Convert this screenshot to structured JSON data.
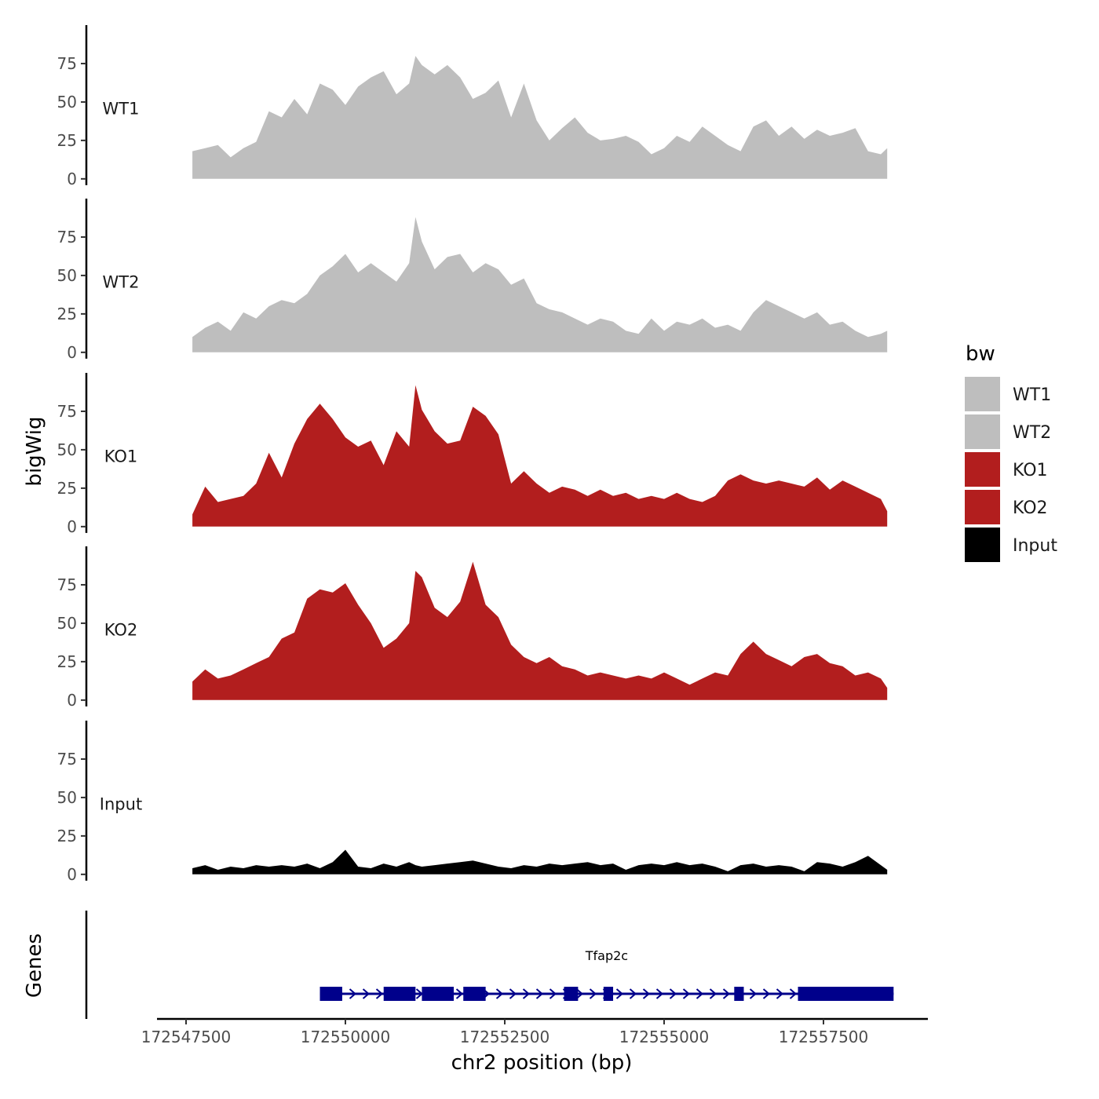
{
  "chart_data": {
    "type": "area",
    "title": "",
    "xlabel": "chr2 position (bp)",
    "ylabel": "bigWig",
    "gene_panel_label": "Genes",
    "xlim": [
      172547500,
      172559000
    ],
    "x_data_range": [
      172547600,
      172558500
    ],
    "ylim": [
      0,
      95
    ],
    "x_ticks": [
      172547500,
      172550000,
      172552500,
      172555000,
      172557500
    ],
    "x_tick_labels": [
      "172547500",
      "172550000",
      "172552500",
      "172555000",
      "172557500"
    ],
    "y_ticks": [
      0,
      25,
      50,
      75
    ],
    "y_tick_labels": [
      "0",
      "25",
      "50",
      "75"
    ],
    "legend": {
      "title": "bw",
      "position": "right",
      "entries": [
        {
          "label": "WT1",
          "color": "#bebebe"
        },
        {
          "label": "WT2",
          "color": "#bebebe"
        },
        {
          "label": "KO1",
          "color": "#b21e1e"
        },
        {
          "label": "KO2",
          "color": "#b21e1e"
        },
        {
          "label": "Input",
          "color": "#000000"
        }
      ]
    },
    "series": [
      {
        "name": "WT1",
        "color": "#bebebe",
        "x": [
          172547600,
          172547800,
          172548000,
          172548200,
          172548400,
          172548600,
          172548800,
          172549000,
          172549200,
          172549400,
          172549600,
          172549800,
          172550000,
          172550200,
          172550400,
          172550600,
          172550800,
          172551000,
          172551100,
          172551200,
          172551400,
          172551600,
          172551800,
          172552000,
          172552200,
          172552400,
          172552600,
          172552800,
          172553000,
          172553200,
          172553400,
          172553600,
          172553800,
          172554000,
          172554200,
          172554400,
          172554600,
          172554800,
          172555000,
          172555200,
          172555400,
          172555600,
          172555800,
          172556000,
          172556200,
          172556400,
          172556600,
          172556800,
          172557000,
          172557200,
          172557400,
          172557600,
          172557800,
          172558000,
          172558200,
          172558400,
          172558500
        ],
        "values": [
          18,
          20,
          22,
          14,
          20,
          24,
          44,
          40,
          52,
          42,
          62,
          58,
          48,
          60,
          66,
          70,
          55,
          62,
          80,
          74,
          68,
          74,
          66,
          52,
          56,
          64,
          40,
          62,
          38,
          25,
          33,
          40,
          30,
          25,
          26,
          28,
          24,
          16,
          20,
          28,
          24,
          34,
          28,
          22,
          18,
          34,
          38,
          28,
          34,
          26,
          32,
          28,
          30,
          33,
          18,
          16,
          20
        ]
      },
      {
        "name": "WT2",
        "color": "#bebebe",
        "x": [
          172547600,
          172547800,
          172548000,
          172548200,
          172548400,
          172548600,
          172548800,
          172549000,
          172549200,
          172549400,
          172549600,
          172549800,
          172550000,
          172550200,
          172550400,
          172550600,
          172550800,
          172551000,
          172551100,
          172551200,
          172551400,
          172551600,
          172551800,
          172552000,
          172552200,
          172552400,
          172552600,
          172552800,
          172553000,
          172553200,
          172553400,
          172553600,
          172553800,
          172554000,
          172554200,
          172554400,
          172554600,
          172554800,
          172555000,
          172555200,
          172555400,
          172555600,
          172555800,
          172556000,
          172556200,
          172556400,
          172556600,
          172556800,
          172557000,
          172557200,
          172557400,
          172557600,
          172557800,
          172558000,
          172558200,
          172558400,
          172558500
        ],
        "values": [
          10,
          16,
          20,
          14,
          26,
          22,
          30,
          34,
          32,
          38,
          50,
          56,
          64,
          52,
          58,
          52,
          46,
          58,
          88,
          72,
          54,
          62,
          64,
          52,
          58,
          54,
          44,
          48,
          32,
          28,
          26,
          22,
          18,
          22,
          20,
          14,
          12,
          22,
          14,
          20,
          18,
          22,
          16,
          18,
          14,
          26,
          34,
          30,
          26,
          22,
          26,
          18,
          20,
          14,
          10,
          12,
          14
        ]
      },
      {
        "name": "KO1",
        "color": "#b21e1e",
        "x": [
          172547600,
          172547800,
          172548000,
          172548200,
          172548400,
          172548600,
          172548800,
          172549000,
          172549200,
          172549400,
          172549600,
          172549800,
          172550000,
          172550200,
          172550400,
          172550600,
          172550800,
          172551000,
          172551100,
          172551200,
          172551400,
          172551600,
          172551800,
          172552000,
          172552200,
          172552400,
          172552600,
          172552800,
          172553000,
          172553200,
          172553400,
          172553600,
          172553800,
          172554000,
          172554200,
          172554400,
          172554600,
          172554800,
          172555000,
          172555200,
          172555400,
          172555600,
          172555800,
          172556000,
          172556200,
          172556400,
          172556600,
          172556800,
          172557000,
          172557200,
          172557400,
          172557600,
          172557800,
          172558000,
          172558200,
          172558400,
          172558500
        ],
        "values": [
          8,
          26,
          16,
          18,
          20,
          28,
          48,
          32,
          54,
          70,
          80,
          70,
          58,
          52,
          56,
          40,
          62,
          52,
          92,
          76,
          62,
          54,
          56,
          78,
          72,
          60,
          28,
          36,
          28,
          22,
          26,
          24,
          20,
          24,
          20,
          22,
          18,
          20,
          18,
          22,
          18,
          16,
          20,
          30,
          34,
          30,
          28,
          30,
          28,
          26,
          32,
          24,
          30,
          26,
          22,
          18,
          10
        ]
      },
      {
        "name": "KO2",
        "color": "#b21e1e",
        "x": [
          172547600,
          172547800,
          172548000,
          172548200,
          172548400,
          172548600,
          172548800,
          172549000,
          172549200,
          172549400,
          172549600,
          172549800,
          172550000,
          172550200,
          172550400,
          172550600,
          172550800,
          172551000,
          172551100,
          172551200,
          172551400,
          172551600,
          172551800,
          172552000,
          172552200,
          172552400,
          172552600,
          172552800,
          172553000,
          172553200,
          172553400,
          172553600,
          172553800,
          172554000,
          172554200,
          172554400,
          172554600,
          172554800,
          172555000,
          172555200,
          172555400,
          172555600,
          172555800,
          172556000,
          172556200,
          172556400,
          172556600,
          172556800,
          172557000,
          172557200,
          172557400,
          172557600,
          172557800,
          172558000,
          172558200,
          172558400,
          172558500
        ],
        "values": [
          12,
          20,
          14,
          16,
          20,
          24,
          28,
          40,
          44,
          66,
          72,
          70,
          76,
          62,
          50,
          34,
          40,
          50,
          84,
          80,
          60,
          54,
          64,
          90,
          62,
          54,
          36,
          28,
          24,
          28,
          22,
          20,
          16,
          18,
          16,
          14,
          16,
          14,
          18,
          14,
          10,
          14,
          18,
          16,
          30,
          38,
          30,
          26,
          22,
          28,
          30,
          24,
          22,
          16,
          18,
          14,
          8
        ]
      },
      {
        "name": "Input",
        "color": "#000000",
        "x": [
          172547600,
          172547800,
          172548000,
          172548200,
          172548400,
          172548600,
          172548800,
          172549000,
          172549200,
          172549400,
          172549600,
          172549800,
          172550000,
          172550200,
          172550400,
          172550600,
          172550800,
          172551000,
          172551100,
          172551200,
          172551400,
          172551600,
          172551800,
          172552000,
          172552200,
          172552400,
          172552600,
          172552800,
          172553000,
          172553200,
          172553400,
          172553600,
          172553800,
          172554000,
          172554200,
          172554400,
          172554600,
          172554800,
          172555000,
          172555200,
          172555400,
          172555600,
          172555800,
          172556000,
          172556200,
          172556400,
          172556600,
          172556800,
          172557000,
          172557200,
          172557400,
          172557600,
          172557800,
          172558000,
          172558200,
          172558400,
          172558500
        ],
        "values": [
          4,
          6,
          3,
          5,
          4,
          6,
          5,
          6,
          5,
          7,
          4,
          8,
          16,
          5,
          4,
          7,
          5,
          8,
          6,
          5,
          6,
          7,
          8,
          9,
          7,
          5,
          4,
          6,
          5,
          7,
          6,
          7,
          8,
          6,
          7,
          3,
          6,
          7,
          6,
          8,
          6,
          7,
          5,
          2,
          6,
          7,
          5,
          6,
          5,
          2,
          8,
          7,
          5,
          8,
          12,
          6,
          3
        ]
      }
    ],
    "genes": [
      {
        "name": "Tfap2c",
        "strand": "+",
        "start": 172549600,
        "end": 172558600,
        "exons": [
          [
            172549600,
            172549950
          ],
          [
            172550600,
            172551100
          ],
          [
            172551200,
            172551700
          ],
          [
            172551850,
            172552200
          ],
          [
            172553430,
            172553650
          ],
          [
            172554050,
            172554200
          ],
          [
            172556100,
            172556250
          ],
          [
            172557100,
            172558600
          ]
        ]
      }
    ]
  }
}
